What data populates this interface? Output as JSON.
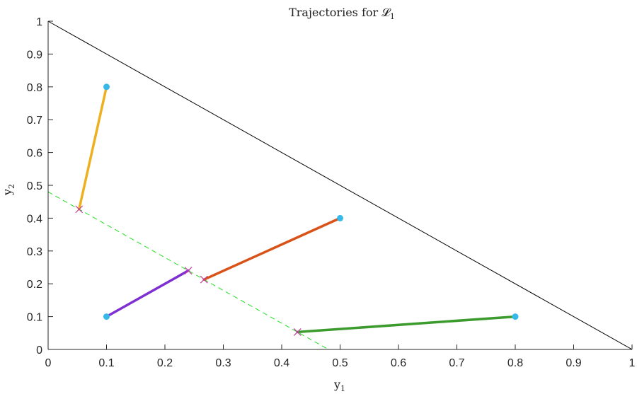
{
  "chart_data": {
    "type": "line",
    "title": "Trajectories for 𝓛",
    "title_subscript": "1",
    "xlabel": "y",
    "xlabel_subscript": "1",
    "ylabel": "y",
    "ylabel_subscript": "2",
    "xlim": [
      0,
      1
    ],
    "ylim": [
      0,
      1
    ],
    "xticks": [
      "0",
      "0.1",
      "0.2",
      "0.3",
      "0.4",
      "0.5",
      "0.6",
      "0.7",
      "0.8",
      "0.9",
      "1"
    ],
    "yticks": [
      "0",
      "0.1",
      "0.2",
      "0.3",
      "0.4",
      "0.5",
      "0.6",
      "0.7",
      "0.8",
      "0.9",
      "1"
    ],
    "grid": false,
    "reference_lines": [
      {
        "points": [
          [
            0,
            1
          ],
          [
            1,
            0
          ]
        ],
        "color": "#000000",
        "style": "solid"
      },
      {
        "points": [
          [
            0,
            0.48
          ],
          [
            0.48,
            0
          ]
        ],
        "color": "#22e022",
        "style": "dashed"
      }
    ],
    "series": [
      {
        "color": "#edb120",
        "start": [
          0.1,
          0.8
        ],
        "end": [
          0.053,
          0.427
        ]
      },
      {
        "color": "#d95319",
        "start": [
          0.5,
          0.4
        ],
        "end": [
          0.267,
          0.213
        ]
      },
      {
        "color": "#7e2fd2",
        "start": [
          0.1,
          0.1
        ],
        "end": [
          0.24,
          0.24
        ]
      },
      {
        "color": "#3b9b2d",
        "start": [
          0.8,
          0.1
        ],
        "end": [
          0.427,
          0.053
        ]
      }
    ],
    "start_marker_color": "#36b9e8",
    "end_marker_color": "#c23c9c"
  }
}
